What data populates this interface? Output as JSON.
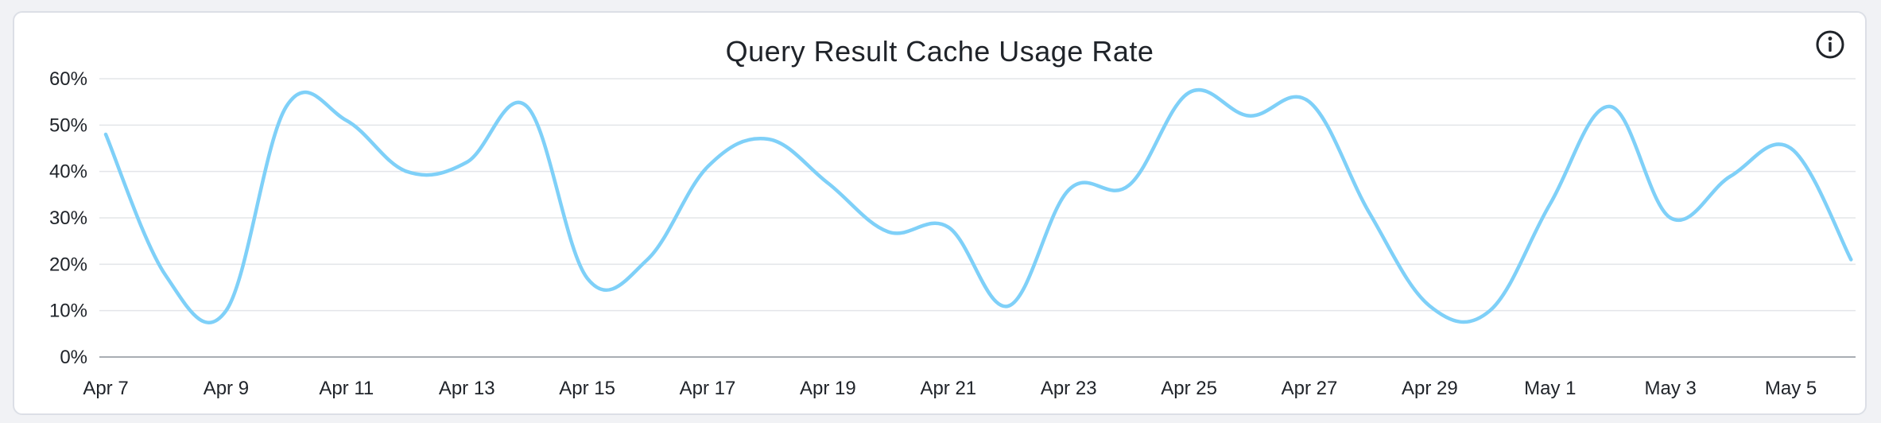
{
  "chart_data": {
    "type": "line",
    "title": "Query Result Cache Usage Rate",
    "xlabel": "",
    "ylabel": "",
    "ylim": [
      0,
      60
    ],
    "y_ticks": [
      "0%",
      "10%",
      "20%",
      "30%",
      "40%",
      "50%",
      "60%"
    ],
    "x_tick_labels": [
      "Apr 7",
      "Apr 9",
      "Apr 11",
      "Apr 13",
      "Apr 15",
      "Apr 17",
      "Apr 19",
      "Apr 21",
      "Apr 23",
      "Apr 25",
      "Apr 27",
      "Apr 29",
      "May 1",
      "May 3",
      "May 5"
    ],
    "grid": true,
    "legend": "none",
    "line_color": "#7fd0f8",
    "x": [
      "Apr 7",
      "Apr 8",
      "Apr 9",
      "Apr 10",
      "Apr 11",
      "Apr 12",
      "Apr 13",
      "Apr 14",
      "Apr 15",
      "Apr 16",
      "Apr 17",
      "Apr 18",
      "Apr 19",
      "Apr 20",
      "Apr 21",
      "Apr 22",
      "Apr 23",
      "Apr 24",
      "Apr 25",
      "Apr 26",
      "Apr 27",
      "Apr 28",
      "Apr 29",
      "Apr 30",
      "May 1",
      "May 2",
      "May 3",
      "May 4",
      "May 5",
      "May 6"
    ],
    "series": [
      {
        "values": [
          48,
          17.5,
          10,
          54,
          51,
          40,
          42,
          54,
          17,
          21,
          41,
          47,
          37.5,
          27,
          28,
          11,
          36,
          37,
          57,
          52,
          55,
          31,
          11,
          10,
          33,
          54,
          30,
          39,
          45,
          21
        ]
      }
    ]
  },
  "toolbar": {
    "info_icon": "info-icon"
  }
}
